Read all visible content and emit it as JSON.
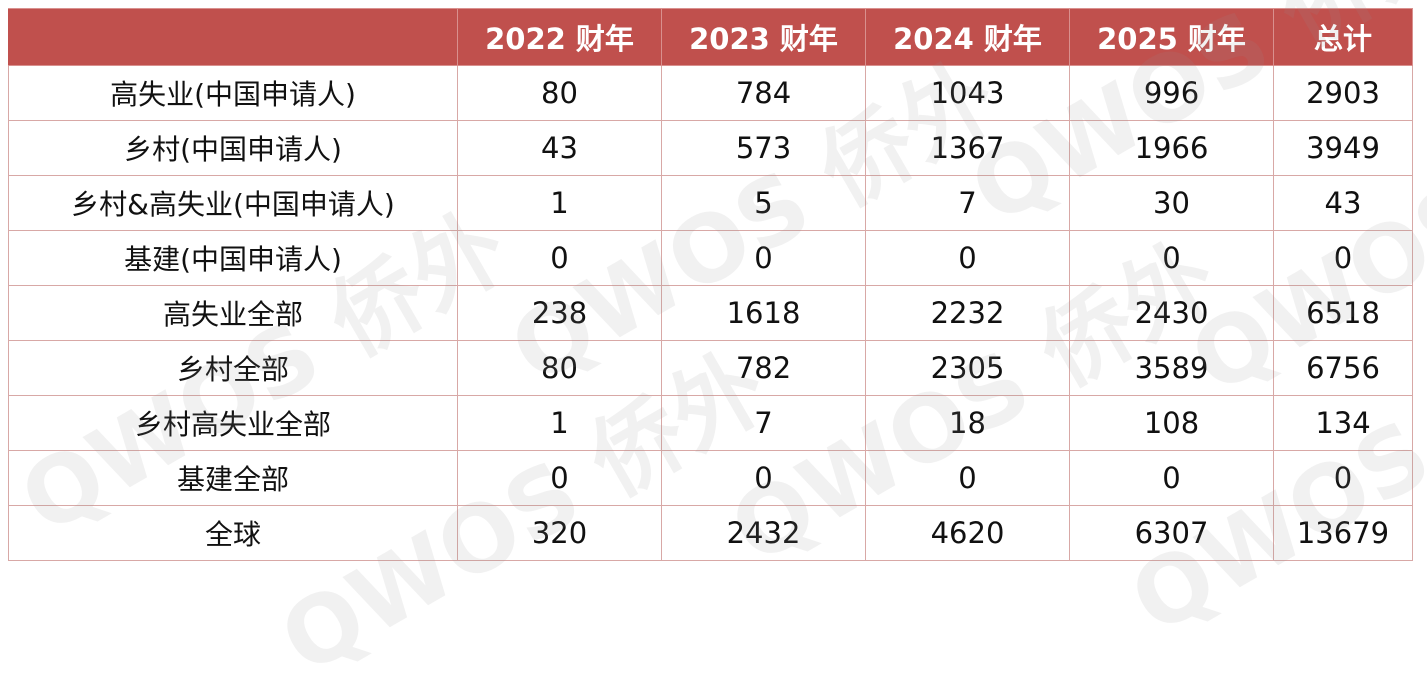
{
  "table": {
    "headers": [
      "",
      "2022 财年",
      "2023 财年",
      "2024 财年",
      "2025 财年",
      "总计"
    ],
    "rows": [
      {
        "label": "高失业(中国申请人)",
        "values": [
          "80",
          "784",
          "1043",
          "996",
          "2903"
        ]
      },
      {
        "label": "乡村(中国申请人)",
        "values": [
          "43",
          "573",
          "1367",
          "1966",
          "3949"
        ]
      },
      {
        "label": "乡村&高失业(中国申请人)",
        "values": [
          "1",
          "5",
          "7",
          "30",
          "43"
        ]
      },
      {
        "label": "基建(中国申请人)",
        "values": [
          "0",
          "0",
          "0",
          "0",
          "0"
        ]
      },
      {
        "label": "高失业全部",
        "values": [
          "238",
          "1618",
          "2232",
          "2430",
          "6518"
        ]
      },
      {
        "label": "乡村全部",
        "values": [
          "80",
          "782",
          "2305",
          "3589",
          "6756"
        ]
      },
      {
        "label": "乡村高失业全部",
        "values": [
          "1",
          "7",
          "18",
          "108",
          "134"
        ]
      },
      {
        "label": "基建全部",
        "values": [
          "0",
          "0",
          "0",
          "0",
          "0"
        ]
      },
      {
        "label": "全球",
        "values": [
          "320",
          "2432",
          "4620",
          "6307",
          "13679"
        ]
      }
    ]
  },
  "watermark": {
    "text": "QWOS 侨外"
  },
  "colors": {
    "header_bg": "#c0504d",
    "header_text": "#ffffff",
    "cell_border": "#d8a8a6"
  }
}
